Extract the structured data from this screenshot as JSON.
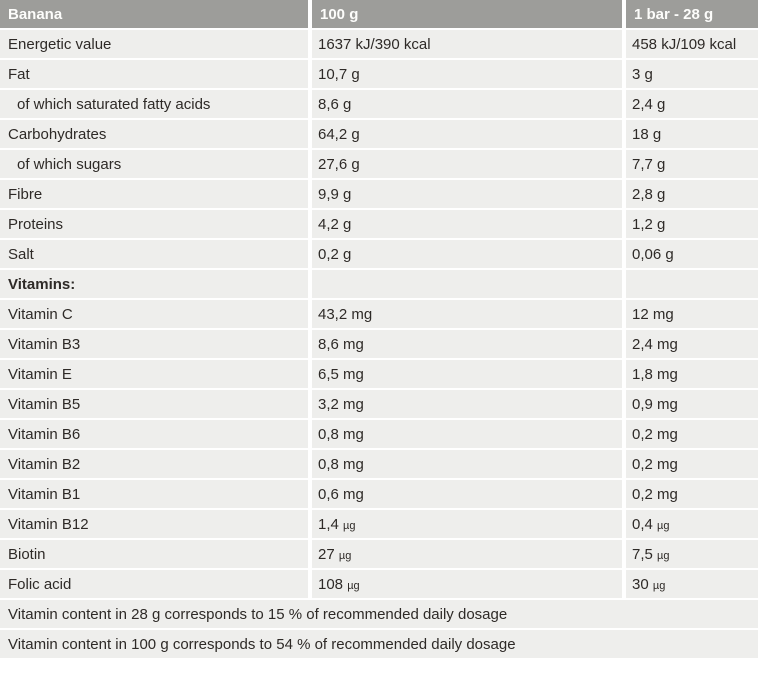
{
  "colors": {
    "header_bg": "#9d9d9a",
    "header_text": "#fdfdfb",
    "row_bg": "#eeeeec",
    "grid_lines": "#ffffff",
    "body_text": "#2e2a27"
  },
  "table": {
    "header": {
      "product": "Banana",
      "col_per_100g": "100 g",
      "col_per_bar": "1 bar - 28 g"
    },
    "rows": [
      {
        "label": "Energetic value",
        "per100": "1637 kJ/390 kcal",
        "perbar": "458 kJ/109 kcal",
        "indent": false,
        "section": false
      },
      {
        "label": "Fat",
        "per100": "10,7 g",
        "perbar": "3 g",
        "indent": false,
        "section": false
      },
      {
        "label": "of which saturated fatty acids",
        "per100": "8,6 g",
        "perbar": "2,4 g",
        "indent": true,
        "section": false
      },
      {
        "label": "Carbohydrates",
        "per100": "64,2 g",
        "perbar": "18 g",
        "indent": false,
        "section": false
      },
      {
        "label": "of which sugars",
        "per100": "27,6 g",
        "perbar": "7,7 g",
        "indent": true,
        "section": false
      },
      {
        "label": "Fibre",
        "per100": "9,9 g",
        "perbar": "2,8 g",
        "indent": false,
        "section": false
      },
      {
        "label": "Proteins",
        "per100": "4,2 g",
        "perbar": "1,2 g",
        "indent": false,
        "section": false
      },
      {
        "label": "Salt",
        "per100": "0,2 g",
        "perbar": "0,06 g",
        "indent": false,
        "section": false
      },
      {
        "label": "Vitamins:",
        "per100": "",
        "perbar": "",
        "indent": false,
        "section": true
      },
      {
        "label": "Vitamin C",
        "per100": "43,2 mg",
        "perbar": "12 mg",
        "indent": false,
        "section": false
      },
      {
        "label": "Vitamin B3",
        "per100": "8,6 mg",
        "perbar": "2,4 mg",
        "indent": false,
        "section": false
      },
      {
        "label": "Vitamin E",
        "per100": "6,5 mg",
        "perbar": "1,8 mg",
        "indent": false,
        "section": false
      },
      {
        "label": "Vitamin B5",
        "per100": "3,2 mg",
        "perbar": "0,9 mg",
        "indent": false,
        "section": false
      },
      {
        "label": "Vitamin B6",
        "per100": "0,8 mg",
        "perbar": "0,2 mg",
        "indent": false,
        "section": false
      },
      {
        "label": "Vitamin B2",
        "per100": "0,8 mg",
        "perbar": "0,2 mg",
        "indent": false,
        "section": false
      },
      {
        "label": "Vitamin B1",
        "per100": "0,6 mg",
        "perbar": "0,2 mg",
        "indent": false,
        "section": false
      },
      {
        "label": "Vitamin B12",
        "per100": "1,4 µg",
        "perbar": "0,4 µg",
        "indent": false,
        "section": false
      },
      {
        "label": "Biotin",
        "per100": "27 µg",
        "perbar": "7,5 µg",
        "indent": false,
        "section": false
      },
      {
        "label": "Folic acid",
        "per100": "108 µg",
        "perbar": "30 µg",
        "indent": false,
        "section": false
      }
    ],
    "footers": [
      "Vitamin content in 28 g corresponds to 15 % of recommended daily dosage",
      "Vitamin content in 100 g corresponds to 54 % of recommended daily dosage"
    ]
  }
}
